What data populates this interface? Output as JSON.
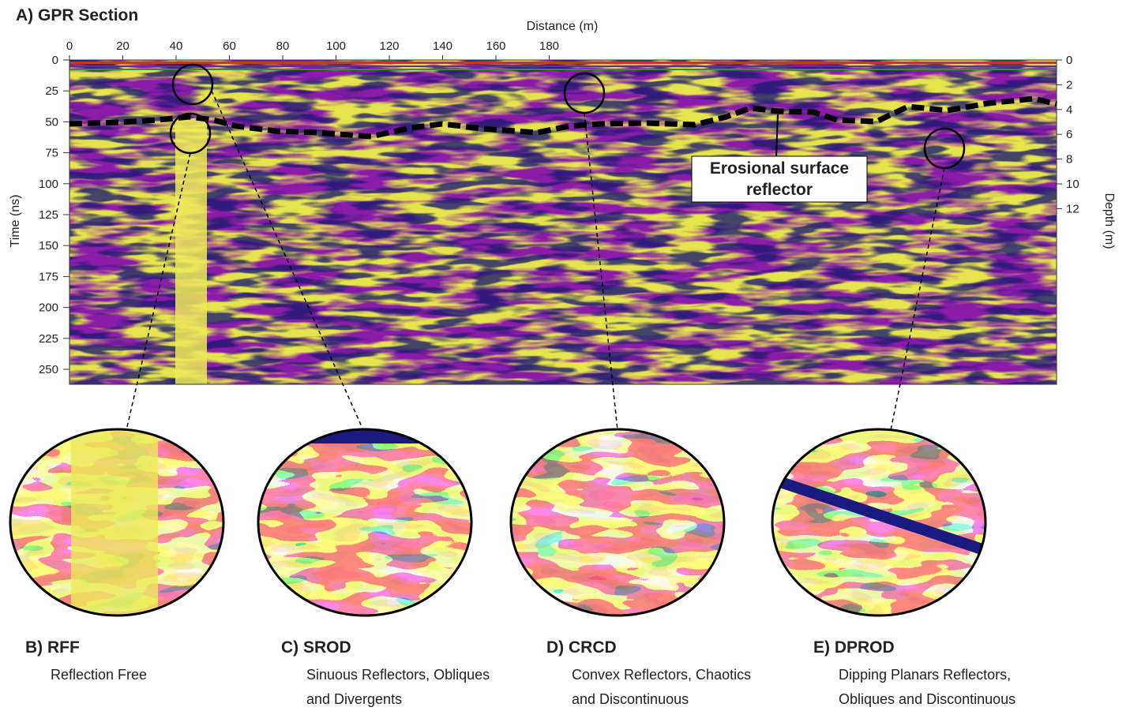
{
  "panel_a": {
    "title": "A) GPR Section",
    "x_label": "Distance (m)",
    "y_label": "Time (ns)",
    "y2_label": "Depth (m)",
    "x_ticks": [
      0,
      20,
      40,
      60,
      80,
      100,
      120,
      140,
      160,
      180
    ],
    "y_ticks": [
      0,
      25,
      50,
      75,
      100,
      125,
      150,
      175,
      200,
      225,
      250
    ],
    "y2_ticks": [
      0,
      2,
      4,
      6,
      8,
      10,
      12
    ],
    "annotation": [
      "Erosional surface",
      "reflector"
    ]
  },
  "insets": [
    {
      "title": "B) RFF",
      "description": [
        "Reflection Free"
      ]
    },
    {
      "title": "C) SROD",
      "description": [
        "Sinuous Reflectors, Obliques",
        "and Divergents"
      ]
    },
    {
      "title": "D) CRCD",
      "description": [
        "Convex Reflectors, Chaotics",
        "and Discontinuous"
      ]
    },
    {
      "title": "E) DPROD",
      "description": [
        "Dipping Planars Reflectors,",
        "Obliques and Discontinuous"
      ]
    }
  ]
}
